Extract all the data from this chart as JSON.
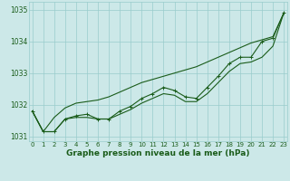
{
  "hours": [
    0,
    1,
    2,
    3,
    4,
    5,
    6,
    7,
    8,
    9,
    10,
    11,
    12,
    13,
    14,
    15,
    16,
    17,
    18,
    19,
    20,
    21,
    22,
    23
  ],
  "measured": [
    1031.8,
    1031.15,
    1031.15,
    1031.55,
    1031.65,
    1031.7,
    1031.55,
    1031.55,
    1031.8,
    1031.95,
    1032.2,
    1032.35,
    1032.55,
    1032.45,
    1032.25,
    1032.2,
    1032.55,
    1032.9,
    1033.3,
    1033.5,
    1033.5,
    1034.0,
    1034.1,
    1034.9
  ],
  "upper": [
    1031.8,
    1031.15,
    1031.6,
    1031.9,
    1032.05,
    1032.1,
    1032.15,
    1032.25,
    1032.4,
    1032.55,
    1032.7,
    1032.8,
    1032.9,
    1033.0,
    1033.1,
    1033.2,
    1033.35,
    1033.5,
    1033.65,
    1033.8,
    1033.95,
    1034.05,
    1034.15,
    1034.9
  ],
  "lower": [
    1031.8,
    1031.15,
    1031.15,
    1031.55,
    1031.6,
    1031.6,
    1031.55,
    1031.55,
    1031.7,
    1031.85,
    1032.05,
    1032.2,
    1032.35,
    1032.3,
    1032.1,
    1032.1,
    1032.35,
    1032.7,
    1033.05,
    1033.3,
    1033.35,
    1033.5,
    1033.85,
    1034.9
  ],
  "bg_color": "#cce8e8",
  "grid_color": "#99cccc",
  "line_color": "#1a5c1a",
  "xlabel": "Graphe pression niveau de la mer (hPa)",
  "ylim": [
    1030.85,
    1035.25
  ],
  "yticks": [
    1031,
    1032,
    1033,
    1034,
    1035
  ],
  "xticks": [
    0,
    1,
    2,
    3,
    4,
    5,
    6,
    7,
    8,
    9,
    10,
    11,
    12,
    13,
    14,
    15,
    16,
    17,
    18,
    19,
    20,
    21,
    22,
    23
  ]
}
